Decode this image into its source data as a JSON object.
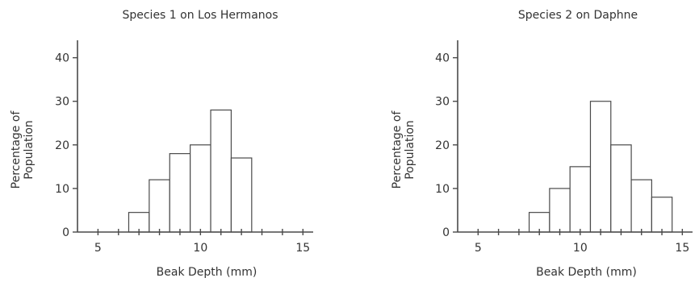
{
  "chart_data": [
    {
      "type": "bar",
      "title": "Species 1 on Los Hermanos",
      "xlabel": "Beak Depth (mm)",
      "ylabel": [
        "Percentage of",
        "Population"
      ],
      "xlim": [
        4,
        15.5
      ],
      "ylim": [
        0,
        44
      ],
      "x_ticks": [
        5,
        10,
        15
      ],
      "y_ticks": [
        0,
        10,
        20,
        30,
        40
      ],
      "bin_width": 1,
      "bins": [
        {
          "start": 6.5,
          "value": 4.5
        },
        {
          "start": 7.5,
          "value": 12
        },
        {
          "start": 8.5,
          "value": 18
        },
        {
          "start": 9.5,
          "value": 20
        },
        {
          "start": 10.5,
          "value": 28
        },
        {
          "start": 11.5,
          "value": 17
        }
      ]
    },
    {
      "type": "bar",
      "title": "Species 2 on Daphne",
      "xlabel": "Beak Depth (mm)",
      "ylabel": [
        "Percentage of",
        "Population"
      ],
      "xlim": [
        4,
        15.5
      ],
      "ylim": [
        0,
        44
      ],
      "x_ticks": [
        5,
        10,
        15
      ],
      "y_ticks": [
        0,
        10,
        20,
        30,
        40
      ],
      "bin_width": 1,
      "bins": [
        {
          "start": 7.5,
          "value": 4.5
        },
        {
          "start": 8.5,
          "value": 10
        },
        {
          "start": 9.5,
          "value": 15
        },
        {
          "start": 10.5,
          "value": 30
        },
        {
          "start": 11.5,
          "value": 20
        },
        {
          "start": 12.5,
          "value": 12
        },
        {
          "start": 13.5,
          "value": 8
        }
      ]
    }
  ]
}
